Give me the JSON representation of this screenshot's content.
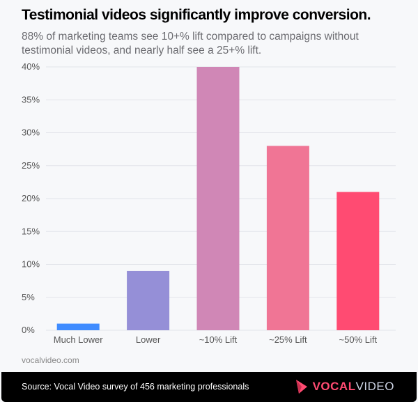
{
  "chart_data": {
    "type": "bar",
    "title": "Testimonial videos significantly improve conversion.",
    "subtitle": "88% of marketing teams see 10+% lift compared to campaigns without testimonial videos, and nearly half see a 25+% lift.",
    "categories": [
      "Much Lower",
      "Lower",
      "~10% Lift",
      "~25% Lift",
      "~50% Lift"
    ],
    "values": [
      1,
      9,
      40,
      28,
      21
    ],
    "colors": [
      "#3f8cff",
      "#958fd7",
      "#d087b6",
      "#f07595",
      "#ff4b72"
    ],
    "ylim": [
      0,
      40
    ],
    "yticks": [
      0,
      5,
      10,
      15,
      20,
      25,
      30,
      35,
      40
    ],
    "ytick_labels": [
      "0%",
      "5%",
      "10%",
      "15%",
      "20%",
      "25%",
      "30%",
      "35%",
      "40%"
    ],
    "grid": true,
    "legend": "none"
  },
  "site": "vocalvideo.com",
  "footer": {
    "source": "Source: Vocal Video survey of 456 marketing professionals",
    "logo_text_a": "VOCAL",
    "logo_text_b": "VIDEO"
  }
}
